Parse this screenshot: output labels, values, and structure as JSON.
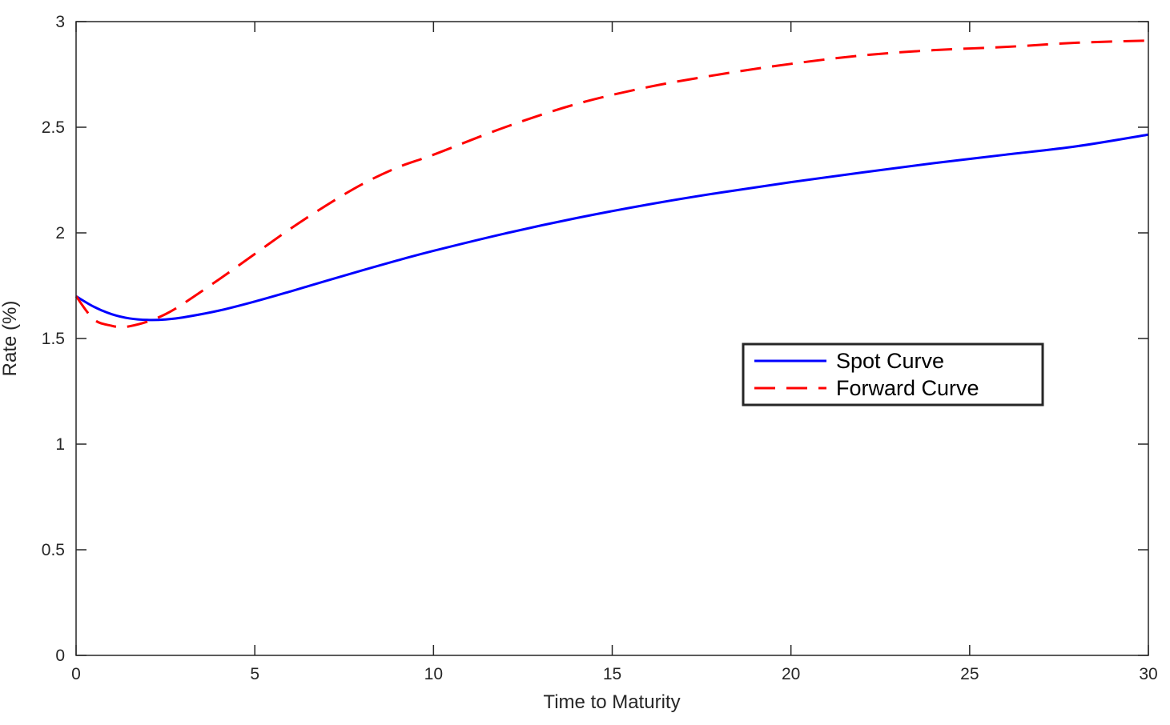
{
  "chart_data": {
    "type": "line",
    "title": "",
    "xlabel": "Time to Maturity",
    "ylabel": "Rate (%)",
    "xlim": [
      0,
      30
    ],
    "ylim": [
      0,
      3
    ],
    "xticks": [
      0,
      5,
      10,
      15,
      20,
      25,
      30
    ],
    "yticks": [
      0,
      0.5,
      1,
      1.5,
      2,
      2.5,
      3
    ],
    "xtick_labels": [
      "0",
      "5",
      "10",
      "15",
      "20",
      "25",
      "30"
    ],
    "ytick_labels": [
      "0",
      "0.5",
      "1",
      "1.5",
      "2",
      "2.5",
      "3"
    ],
    "grid": false,
    "legend_position": "center-right",
    "series": [
      {
        "name": "Spot Curve",
        "color": "#0000ff",
        "style": "solid",
        "x": [
          0,
          0.5,
          1,
          1.5,
          2,
          2.5,
          3,
          4,
          5,
          6,
          7,
          8,
          9,
          10,
          12,
          14,
          16,
          18,
          20,
          22,
          24,
          26,
          28,
          30
        ],
        "y": [
          1.7,
          1.65,
          1.615,
          1.595,
          1.588,
          1.59,
          1.6,
          1.632,
          1.675,
          1.723,
          1.773,
          1.822,
          1.87,
          1.915,
          1.997,
          2.07,
          2.134,
          2.19,
          2.24,
          2.286,
          2.33,
          2.37,
          2.41,
          2.465
        ]
      },
      {
        "name": "Forward Curve",
        "color": "#ff0000",
        "style": "dashed",
        "x": [
          0,
          0.5,
          1,
          1.25,
          1.5,
          2,
          2.5,
          3,
          4,
          5,
          6,
          7,
          8,
          9,
          10,
          12,
          14,
          16,
          18,
          20,
          22,
          24,
          26,
          28,
          30
        ],
        "y": [
          1.7,
          1.59,
          1.56,
          1.555,
          1.558,
          1.58,
          1.615,
          1.665,
          1.78,
          1.9,
          2.02,
          2.13,
          2.23,
          2.31,
          2.37,
          2.5,
          2.61,
          2.69,
          2.75,
          2.8,
          2.84,
          2.865,
          2.88,
          2.9,
          2.91
        ]
      }
    ]
  }
}
